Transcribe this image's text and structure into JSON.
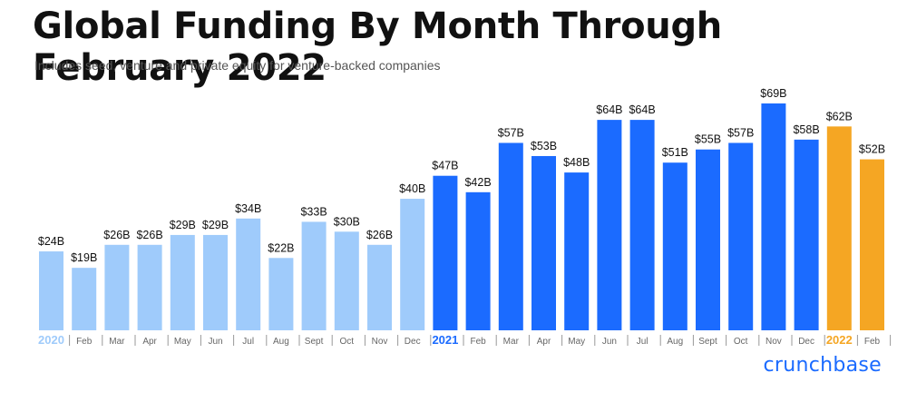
{
  "title": "Global Funding By Month Through February 2022",
  "subtitle": "Includes seed, venture and private equity for venture-backed companies",
  "brand": "crunchbase",
  "colors": {
    "y2020": "#9fcbfb",
    "y2021": "#1b6bff",
    "y2022": "#f5a623",
    "label": "#111111",
    "tick": "#666666"
  },
  "chart_data": {
    "type": "bar",
    "title": "Global Funding By Month Through February 2022",
    "subtitle": "Includes seed, venture and private equity for venture-backed companies",
    "xlabel": "",
    "ylabel": "",
    "grid": false,
    "legend": "none",
    "unit": "$B",
    "categories": [
      "2020",
      "Feb",
      "Mar",
      "Apr",
      "May",
      "Jun",
      "Jul",
      "Aug",
      "Sept",
      "Oct",
      "Nov",
      "Dec",
      "2021",
      "Feb",
      "Mar",
      "Apr",
      "May",
      "Jun",
      "Jul",
      "Aug",
      "Sept",
      "Oct",
      "Nov",
      "Dec",
      "2022",
      "Feb"
    ],
    "years": [
      "2020",
      "2020",
      "2020",
      "2020",
      "2020",
      "2020",
      "2020",
      "2020",
      "2020",
      "2020",
      "2020",
      "2020",
      "2021",
      "2021",
      "2021",
      "2021",
      "2021",
      "2021",
      "2021",
      "2021",
      "2021",
      "2021",
      "2021",
      "2021",
      "2022",
      "2022"
    ],
    "values": [
      24,
      19,
      26,
      26,
      29,
      29,
      34,
      22,
      33,
      30,
      26,
      40,
      47,
      42,
      57,
      53,
      48,
      64,
      64,
      51,
      55,
      57,
      69,
      58,
      62,
      52
    ],
    "value_labels": [
      "$24B",
      "$19B",
      "$26B",
      "$26B",
      "$29B",
      "$29B",
      "$34B",
      "$22B",
      "$33B",
      "$30B",
      "$26B",
      "$40B",
      "$47B",
      "$42B",
      "$57B",
      "$53B",
      "$48B",
      "$64B",
      "$64B",
      "$51B",
      "$55B",
      "$57B",
      "$69B",
      "$58B",
      "$62B",
      "$52B"
    ],
    "ylim": [
      0,
      69
    ]
  }
}
